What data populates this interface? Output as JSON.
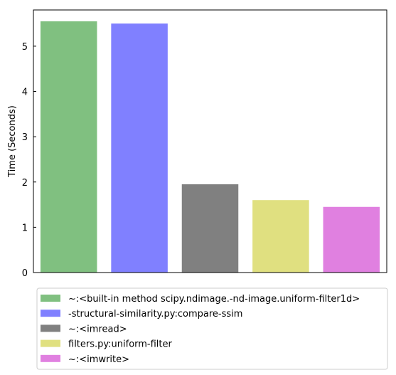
{
  "chart_data": {
    "type": "bar",
    "title": "",
    "xlabel": "",
    "ylabel": "Time (Seconds)",
    "ylim": [
      0,
      5.8
    ],
    "yticks": [
      0,
      1,
      2,
      3,
      4,
      5
    ],
    "grid": false,
    "legend_position": "below",
    "categories": [
      "~:<built-in method scipy.ndimage.-nd-image.uniform-filter1d>",
      "-structural-similarity.py:compare-ssim",
      "~:<imread>",
      "filters.py:uniform-filter",
      "~:<imwrite>"
    ],
    "values": [
      5.55,
      5.5,
      1.95,
      1.6,
      1.45
    ],
    "colors": [
      "#80c080",
      "#8080ff",
      "#808080",
      "#e0e080",
      "#e080e0"
    ]
  }
}
